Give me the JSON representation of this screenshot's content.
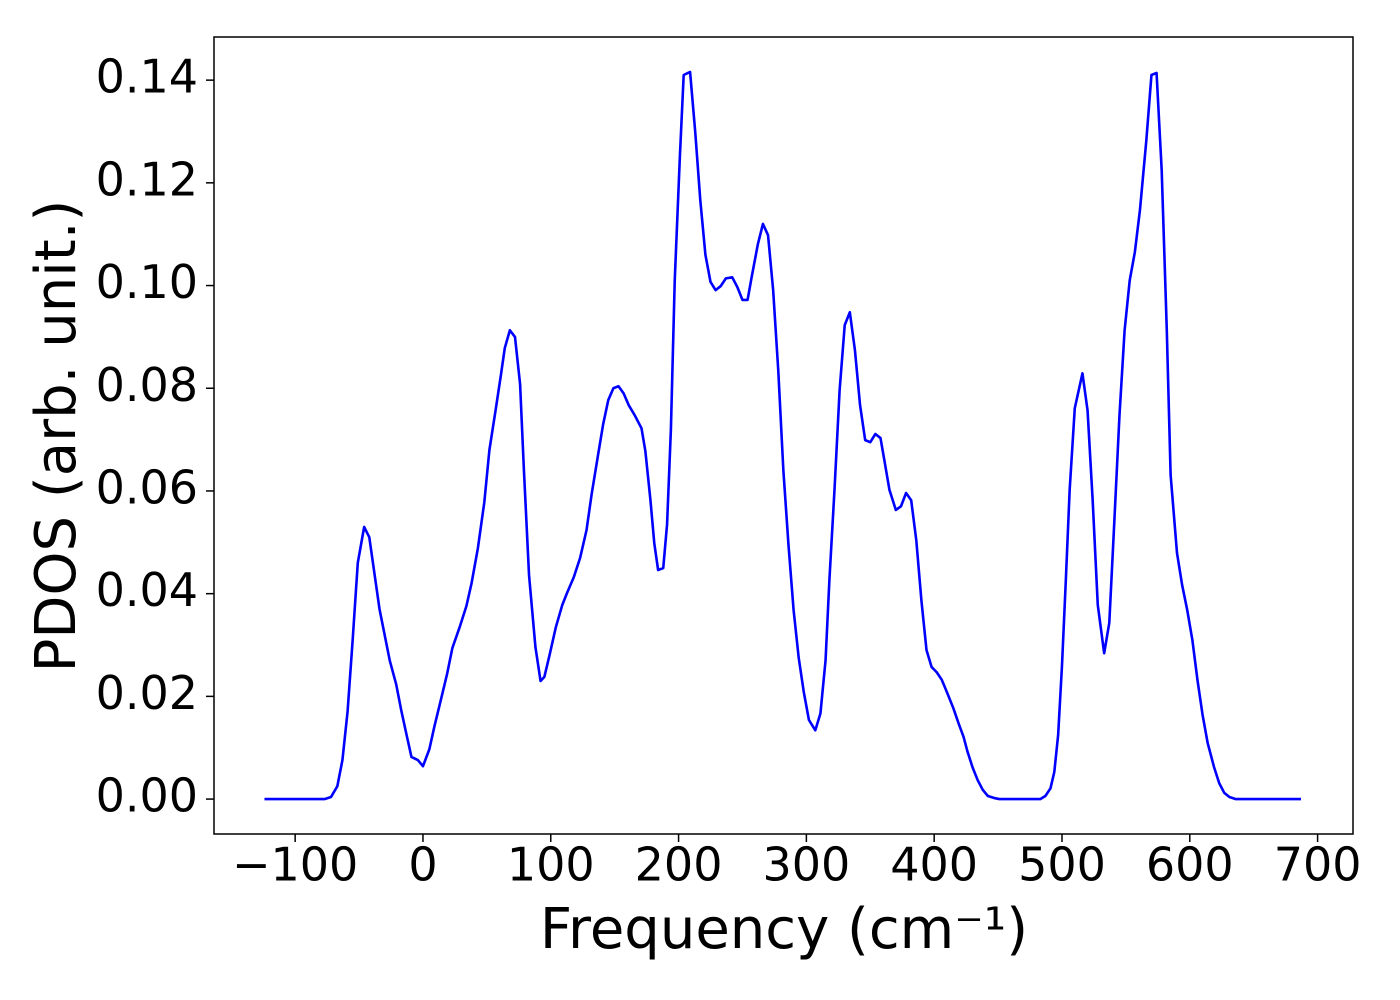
{
  "chart_data": {
    "type": "line",
    "xlabel": "Frequency (cm⁻¹)",
    "ylabel": "PDOS (arb. unit.)",
    "color": "#0000ff",
    "x": [
      -124,
      -77,
      -72,
      -67,
      -63,
      -59,
      -55,
      -51,
      -46,
      -42,
      -38,
      -34,
      -30,
      -26,
      -21,
      -17,
      -13,
      -9,
      -4,
      0,
      5,
      9,
      14,
      19,
      23,
      29,
      34,
      38,
      43,
      48,
      52,
      57,
      61,
      64,
      68,
      72,
      76,
      79,
      83,
      88,
      92,
      95,
      99,
      104,
      109,
      113,
      118,
      123,
      128,
      132,
      137,
      141,
      145,
      149,
      153,
      157,
      161,
      166,
      171,
      174,
      178,
      181,
      184,
      188,
      191,
      194,
      197,
      201,
      204,
      209,
      213,
      217,
      221,
      225,
      229,
      233,
      237,
      242,
      246,
      250,
      254,
      257,
      262,
      266,
      270,
      274,
      278,
      282,
      286,
      290,
      294,
      298,
      302,
      307,
      311,
      315,
      318,
      322,
      326,
      330,
      334,
      338,
      342,
      346,
      350,
      354,
      358,
      361,
      365,
      370,
      374,
      378,
      382,
      386,
      390,
      394,
      398,
      402,
      406,
      410,
      415,
      419,
      423,
      426,
      430,
      434,
      438,
      442,
      447,
      451,
      483,
      487,
      491,
      494,
      497,
      500,
      503,
      506,
      510,
      516,
      520,
      524,
      528,
      533,
      537,
      541,
      545,
      549,
      553,
      557,
      561,
      566,
      570,
      574,
      578,
      582,
      585,
      590,
      594,
      598,
      602,
      606,
      610,
      614,
      619,
      623,
      627,
      631,
      636,
      687
    ],
    "values": [
      0,
      0,
      0.0004,
      0.0025,
      0.0076,
      0.017,
      0.031,
      0.046,
      0.053,
      0.051,
      0.044,
      0.037,
      0.032,
      0.027,
      0.0224,
      0.0173,
      0.0127,
      0.0082,
      0.0076,
      0.0064,
      0.0097,
      0.0142,
      0.0193,
      0.0245,
      0.0294,
      0.0337,
      0.0376,
      0.042,
      0.0489,
      0.0578,
      0.068,
      0.076,
      0.0826,
      0.0878,
      0.0913,
      0.09,
      0.0808,
      0.064,
      0.0436,
      0.0296,
      0.023,
      0.0238,
      0.028,
      0.0335,
      0.0378,
      0.0403,
      0.0432,
      0.047,
      0.0524,
      0.0594,
      0.067,
      0.073,
      0.0777,
      0.08,
      0.0804,
      0.079,
      0.0767,
      0.0746,
      0.0722,
      0.0678,
      0.0582,
      0.0498,
      0.0446,
      0.045,
      0.0535,
      0.072,
      0.101,
      0.125,
      0.141,
      0.1416,
      0.13,
      0.1166,
      0.106,
      0.1007,
      0.0991,
      0.0999,
      0.1014,
      0.1016,
      0.0997,
      0.0972,
      0.0972,
      0.1014,
      0.108,
      0.112,
      0.1098,
      0.0991,
      0.0835,
      0.064,
      0.0495,
      0.0368,
      0.0275,
      0.0208,
      0.0154,
      0.0134,
      0.0167,
      0.027,
      0.0426,
      0.0602,
      0.0796,
      0.0923,
      0.0948,
      0.0874,
      0.0767,
      0.0699,
      0.0695,
      0.0711,
      0.0703,
      0.066,
      0.0602,
      0.0563,
      0.057,
      0.0596,
      0.0582,
      0.0504,
      0.0387,
      0.029,
      0.0257,
      0.0247,
      0.0232,
      0.0208,
      0.0177,
      0.0148,
      0.0121,
      0.0093,
      0.0062,
      0.0037,
      0.0018,
      0.0006,
      0.0002,
      0,
      0,
      0.0006,
      0.0021,
      0.0053,
      0.0125,
      0.026,
      0.0426,
      0.0602,
      0.0761,
      0.0829,
      0.0757,
      0.0582,
      0.0378,
      0.0284,
      0.0343,
      0.0543,
      0.0748,
      0.0913,
      0.101,
      0.1065,
      0.1147,
      0.1283,
      0.141,
      0.1414,
      0.1225,
      0.0913,
      0.0631,
      0.0479,
      0.0417,
      0.0368,
      0.031,
      0.0232,
      0.0164,
      0.0109,
      0.0062,
      0.0031,
      0.0012,
      0.0004,
      0,
      0
    ],
    "xlim": [
      -163.5,
      727.7
    ],
    "xticks": [
      {
        "value": -100,
        "label": "−100"
      },
      0,
      100,
      200,
      300,
      400,
      500,
      600,
      700
    ],
    "ylim": [
      -0.0068,
      0.1484
    ],
    "yticks": [
      {
        "value": 0,
        "label": "0.00"
      },
      0.02,
      0.04,
      0.06,
      0.08,
      {
        "value": 0.1,
        "label": "0.10"
      },
      0.12,
      0.14
    ],
    "grid": false
  }
}
